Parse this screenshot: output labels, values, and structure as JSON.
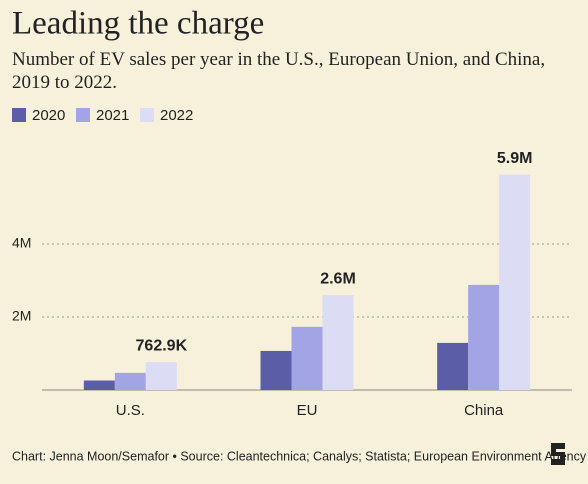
{
  "chart_data": {
    "type": "bar",
    "title": "Leading the charge",
    "subtitle": "Number of EV sales per year in the U.S., European Union, and China, 2019 to 2022.",
    "categories": [
      "U.S.",
      "EU",
      "China"
    ],
    "series": [
      {
        "name": "2020",
        "color": "#5b5ea6",
        "values": [
          260000,
          1070000,
          1290000
        ]
      },
      {
        "name": "2021",
        "color": "#a3a4e6",
        "values": [
          470000,
          1730000,
          2880000
        ]
      },
      {
        "name": "2022",
        "color": "#dcdcf5",
        "values": [
          762900,
          2600000,
          5900000
        ],
        "value_labels": [
          "762.9K",
          "2.6M",
          "5.9M"
        ]
      }
    ],
    "ylim": [
      0,
      6300000
    ],
    "yticks": [
      {
        "value": 2000000,
        "label": "2M"
      },
      {
        "value": 4000000,
        "label": "4M"
      }
    ],
    "grid": true,
    "footer": "Chart: Jenna Moon/Semafor • Source: Cleantechnica; Canalys; Statista; European Environment Agency"
  }
}
